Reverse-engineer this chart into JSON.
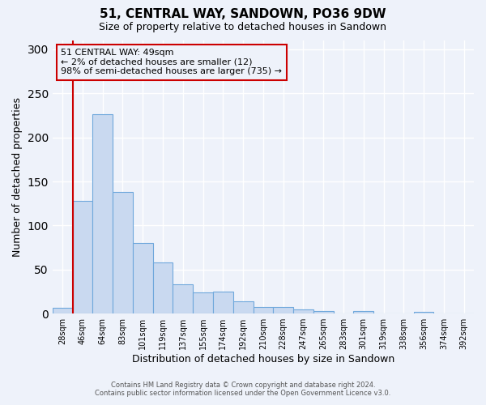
{
  "title": "51, CENTRAL WAY, SANDOWN, PO36 9DW",
  "subtitle": "Size of property relative to detached houses in Sandown",
  "xlabel": "Distribution of detached houses by size in Sandown",
  "ylabel": "Number of detached properties",
  "bin_labels": [
    "28sqm",
    "46sqm",
    "64sqm",
    "83sqm",
    "101sqm",
    "119sqm",
    "137sqm",
    "155sqm",
    "174sqm",
    "192sqm",
    "210sqm",
    "228sqm",
    "247sqm",
    "265sqm",
    "283sqm",
    "301sqm",
    "319sqm",
    "338sqm",
    "356sqm",
    "374sqm",
    "392sqm"
  ],
  "bar_heights": [
    7,
    128,
    226,
    138,
    80,
    58,
    33,
    24,
    25,
    14,
    8,
    8,
    5,
    3,
    0,
    3,
    0,
    0,
    2,
    0,
    0
  ],
  "bar_color": "#c9d9f0",
  "bar_edge_color": "#6fa8dc",
  "ylim": [
    0,
    310
  ],
  "yticks": [
    0,
    50,
    100,
    150,
    200,
    250,
    300
  ],
  "vline_color": "#cc0000",
  "annotation_title": "51 CENTRAL WAY: 49sqm",
  "annotation_line2": "← 2% of detached houses are smaller (12)",
  "annotation_line3": "98% of semi-detached houses are larger (735) →",
  "annotation_box_color": "#cc0000",
  "footer_line1": "Contains HM Land Registry data © Crown copyright and database right 2024.",
  "footer_line2": "Contains public sector information licensed under the Open Government Licence v3.0.",
  "background_color": "#eef2fa",
  "grid_color": "#ffffff"
}
